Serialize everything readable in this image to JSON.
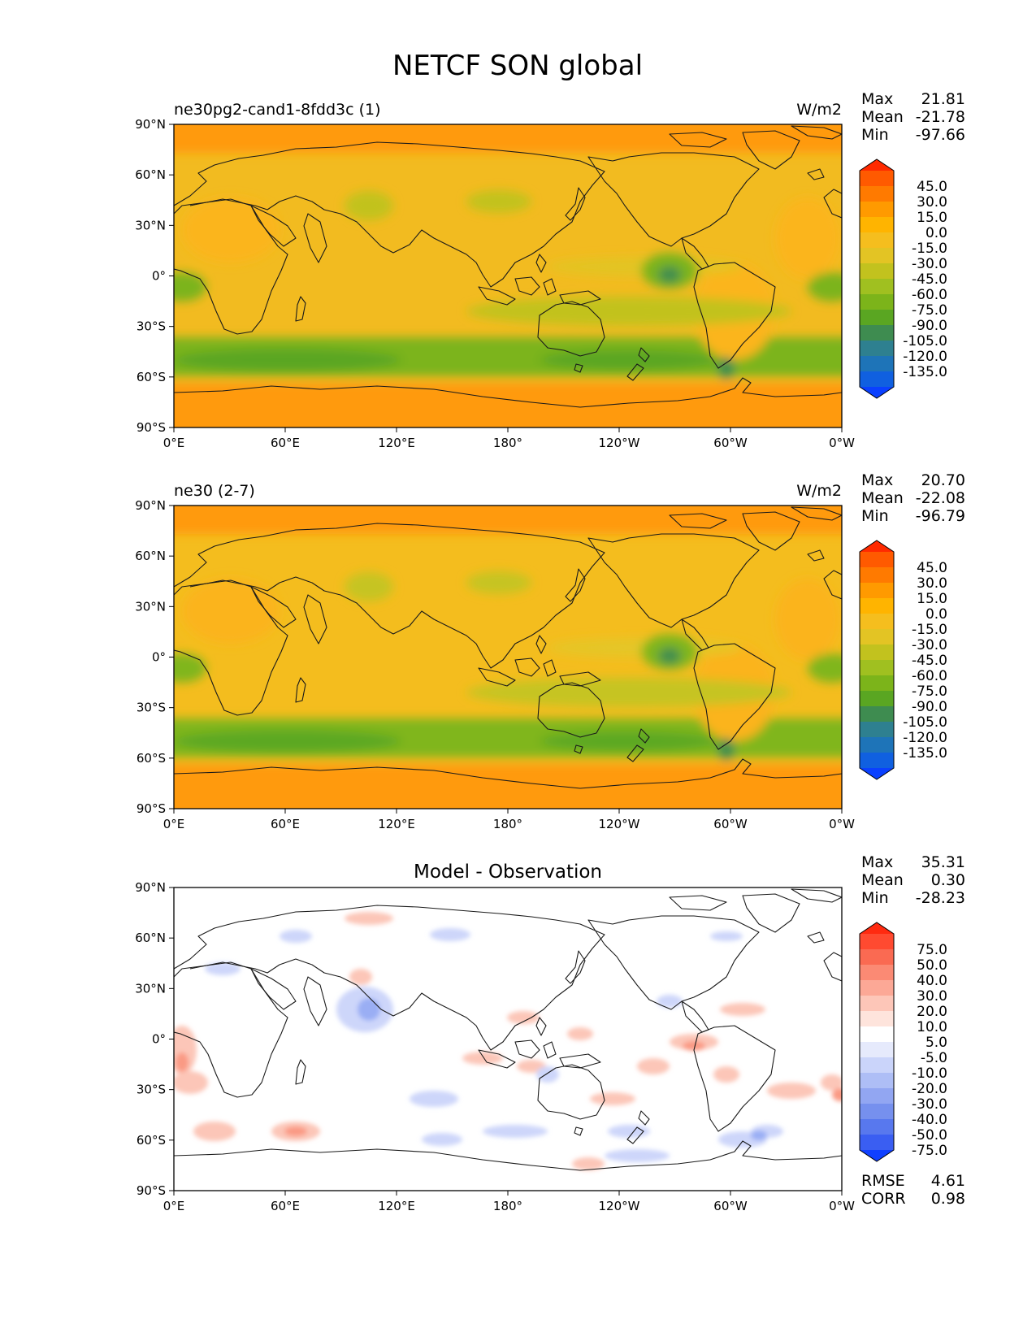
{
  "figure_title": "NETCF SON global",
  "x_ticks": [
    "0°E",
    "60°E",
    "120°E",
    "180°",
    "120°W",
    "60°W",
    "0°W"
  ],
  "y_ticks": [
    "90°N",
    "60°N",
    "30°N",
    "0°",
    "30°S",
    "60°S",
    "90°S"
  ],
  "stat_labels": {
    "max": "Max",
    "mean": "Mean",
    "min": "Min",
    "rmse": "RMSE",
    "corr": "CORR"
  },
  "panels": [
    {
      "left_title": "ne30pg2-cand1-8fdd3c (1)",
      "center_title": "",
      "units": "W/m2",
      "stats": {
        "max": "21.81",
        "mean": "-21.78",
        "min": "-97.66"
      },
      "colorbar": {
        "ticks": [
          "45.0",
          "30.0",
          "15.0",
          "0.0",
          "-15.0",
          "-30.0",
          "-45.0",
          "-60.0",
          "-75.0",
          "-90.0",
          "-105.0",
          "-120.0",
          "-135.0"
        ],
        "colors": [
          "#ff2a00",
          "#ff5a00",
          "#ff7a00",
          "#ff9a00",
          "#ffb400",
          "#f5be1e",
          "#e3c424",
          "#c2c21e",
          "#a0c020",
          "#7cb41a",
          "#5aa622",
          "#3e8c50",
          "#2e8090",
          "#1e74b8",
          "#1060e0",
          "#0a40ff"
        ]
      }
    },
    {
      "left_title": "ne30 (2-7)",
      "center_title": "",
      "units": "W/m2",
      "stats": {
        "max": "20.70",
        "mean": "-22.08",
        "min": "-96.79"
      },
      "colorbar": {
        "ticks": [
          "45.0",
          "30.0",
          "15.0",
          "0.0",
          "-15.0",
          "-30.0",
          "-45.0",
          "-60.0",
          "-75.0",
          "-90.0",
          "-105.0",
          "-120.0",
          "-135.0"
        ],
        "colors": [
          "#ff2a00",
          "#ff5a00",
          "#ff7a00",
          "#ff9a00",
          "#ffb400",
          "#f5be1e",
          "#e3c424",
          "#c2c21e",
          "#a0c020",
          "#7cb41a",
          "#5aa622",
          "#3e8c50",
          "#2e8090",
          "#1e74b8",
          "#1060e0",
          "#0a40ff"
        ]
      }
    },
    {
      "left_title": "",
      "center_title": "Model - Observation",
      "units": "",
      "stats": {
        "max": "35.31",
        "mean": "0.30",
        "min": "-28.23",
        "rmse": "4.61",
        "corr": "0.98"
      },
      "colorbar": {
        "ticks": [
          "75.0",
          "50.0",
          "40.0",
          "30.0",
          "20.0",
          "10.0",
          "5.0",
          "-5.0",
          "-10.0",
          "-20.0",
          "-30.0",
          "-40.0",
          "-50.0",
          "-75.0"
        ],
        "colors": [
          "#ff2a10",
          "#ff4a30",
          "#fa6a52",
          "#fb8a74",
          "#fca896",
          "#fdc6b8",
          "#fee4dc",
          "#ffffff",
          "#e6eafc",
          "#cad4fa",
          "#aebef6",
          "#92a6f2",
          "#7690ee",
          "#5878ee",
          "#3a5ef2",
          "#1040ff"
        ]
      }
    }
  ],
  "panel_fields": [
    {
      "base": "#f2bb20",
      "high_lat": "#ff9a0c",
      "land": "#fbb51a",
      "storm_track": "#7cb41a",
      "storm_track_core": "#5aa622",
      "itcz": "#c2c21e",
      "upwelling": "#e3c424",
      "patch_dark": "#3e8c50"
    },
    {
      "base": "#f4bd1e",
      "high_lat": "#ff9a0c",
      "land": "#fbb41a",
      "storm_track": "#80b61c",
      "storm_track_core": "#5ca824",
      "itcz": "#c6c420",
      "upwelling": "#e5c626",
      "patch_dark": "#3e8c50"
    },
    {
      "base": "#ffffff",
      "positive": "#fcc6b8",
      "positive_strong": "#fa9a84",
      "negative": "#cdd6fa",
      "negative_strong": "#9aaef4"
    }
  ]
}
